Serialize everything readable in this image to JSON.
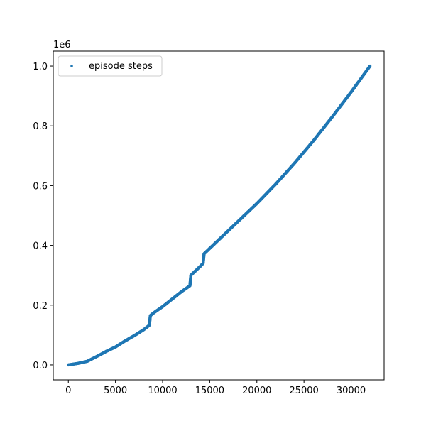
{
  "chart_data": {
    "type": "scatter",
    "title": "",
    "xlabel": "",
    "ylabel": "",
    "xlim": [
      -1600,
      33500
    ],
    "ylim": [
      -50000,
      1050000
    ],
    "x_ticks": [
      0,
      5000,
      10000,
      15000,
      20000,
      25000,
      30000
    ],
    "x_tick_labels": [
      "0",
      "5000",
      "10000",
      "15000",
      "20000",
      "25000",
      "30000"
    ],
    "y_ticks": [
      0,
      200000,
      400000,
      600000,
      800000,
      1000000
    ],
    "y_tick_labels": [
      "0.0",
      "0.2",
      "0.4",
      "0.6",
      "0.8",
      "1.0"
    ],
    "y_offset_label": "1e6",
    "grid": false,
    "legend_position": "top-left",
    "color": "#1f77b4",
    "series": [
      {
        "name": "episode steps",
        "x": [
          0,
          1000,
          2000,
          3000,
          4000,
          5000,
          6000,
          7000,
          8000,
          8600,
          8700,
          9000,
          10000,
          11000,
          12000,
          12900,
          13000,
          14000,
          14300,
          14400,
          15000,
          16000,
          17000,
          18000,
          19000,
          20000,
          22000,
          24000,
          26000,
          28000,
          30000,
          32000
        ],
        "y": [
          0,
          5000,
          12000,
          28000,
          45000,
          60000,
          80000,
          98000,
          118000,
          133000,
          165000,
          173000,
          195000,
          220000,
          245000,
          265000,
          300000,
          330000,
          340000,
          372000,
          390000,
          420000,
          450000,
          480000,
          510000,
          540000,
          605000,
          675000,
          750000,
          830000,
          913000,
          1000000
        ]
      }
    ]
  }
}
